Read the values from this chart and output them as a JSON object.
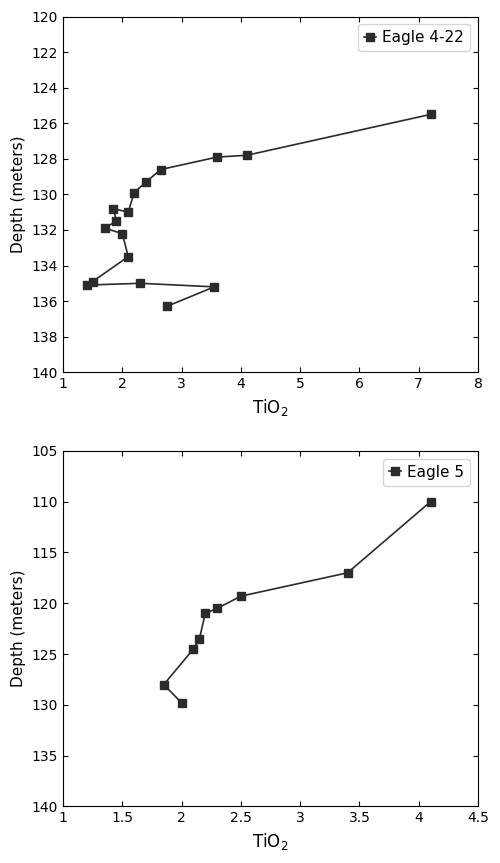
{
  "plot1": {
    "label": "Eagle 4-22",
    "tio2": [
      7.2,
      4.1,
      3.6,
      2.65,
      2.4,
      2.2,
      2.1,
      1.85,
      1.9,
      1.7,
      2.0,
      2.1,
      1.5,
      1.4,
      2.3,
      3.55,
      2.75
    ],
    "depth": [
      125.5,
      127.8,
      127.9,
      128.6,
      129.3,
      129.9,
      131.0,
      130.8,
      131.5,
      131.9,
      132.2,
      133.5,
      134.9,
      135.1,
      135.0,
      135.2,
      136.3
    ],
    "xlim": [
      1,
      8
    ],
    "ylim": [
      140,
      120
    ],
    "xticks": [
      1,
      2,
      3,
      4,
      5,
      6,
      7,
      8
    ],
    "yticks": [
      120,
      122,
      124,
      126,
      128,
      130,
      132,
      134,
      136,
      138,
      140
    ]
  },
  "plot2": {
    "label": "Eagle 5",
    "tio2": [
      4.1,
      3.4,
      2.5,
      2.3,
      2.2,
      2.15,
      2.1,
      1.85,
      2.0
    ],
    "depth": [
      110.0,
      117.0,
      119.3,
      120.5,
      121.0,
      123.5,
      124.5,
      128.0,
      129.8
    ],
    "xlim": [
      1,
      4.5
    ],
    "ylim": [
      140,
      105
    ],
    "xticks": [
      1.0,
      1.5,
      2.0,
      2.5,
      3.0,
      3.5,
      4.0,
      4.5
    ],
    "yticks": [
      105,
      110,
      115,
      120,
      125,
      130,
      135,
      140
    ]
  },
  "xlabel": "TiO$_2$",
  "ylabel": "Depth (meters)",
  "marker": "s",
  "markersize": 6,
  "linewidth": 1.2,
  "color": "#2b2b2b",
  "figsize": [
    5.0,
    8.63
  ],
  "dpi": 100
}
